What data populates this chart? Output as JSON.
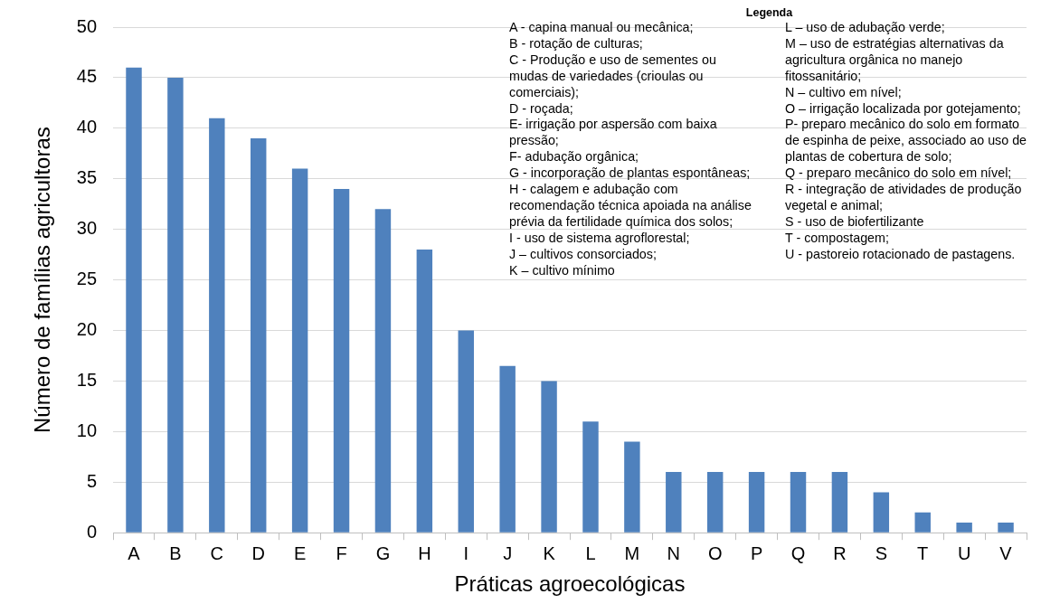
{
  "chart_data": {
    "type": "bar",
    "xlabel": "Práticas agroecológicas",
    "ylabel": "Número de famílias agricultoras",
    "categories": [
      "A",
      "B",
      "C",
      "D",
      "E",
      "F",
      "G",
      "H",
      "I",
      "J",
      "K",
      "L",
      "M",
      "N",
      "O",
      "P",
      "Q",
      "R",
      "S",
      "T",
      "U",
      "V"
    ],
    "values": [
      46,
      45,
      41,
      39,
      36,
      34,
      32,
      28,
      20,
      16.5,
      15,
      11,
      9,
      6,
      6,
      6,
      6,
      6,
      4,
      2,
      1,
      1
    ],
    "color": "#4f81bd",
    "ylim": [
      0,
      50
    ],
    "yticks": [
      0,
      5,
      10,
      15,
      20,
      25,
      30,
      35,
      40,
      45,
      50
    ],
    "grid": "y",
    "legend": false,
    "annotations": [
      "Legenda",
      "A - capina manual ou mecânica;",
      "B - rotação de culturas;",
      "C - Produção e uso de sementes ou mudas de variedades (crioulas ou comerciais);",
      "D - roçada;",
      "E- irrigação por aspersão com baixa pressão;",
      "F- adubação orgânica;",
      "G - incorporação de plantas espontâneas;",
      "H - calagem e adubação com recomendação técnica apoiada na análise prévia da fertilidade química dos solos;",
      "I - uso de sistema agroflorestal;",
      "J – cultivos consorciados;",
      "K – cultivo mínimo",
      "L – uso de adubação verde;",
      "M – uso de estratégias alternativas da agricultura orgânica no manejo fitossanitário;",
      "N – cultivo em nível;",
      "O – irrigação localizada por gotejamento;",
      "P- preparo mecânico do solo em formato de espinha de peixe, associado ao uso de plantas de cobertura de solo;",
      "Q - preparo mecânico do solo em nível;",
      "R - integração de atividades de produção vegetal e animal;",
      "S - uso de biofertilizante",
      "T - compostagem;",
      "U - pastoreio rotacionado de pastagens."
    ]
  }
}
